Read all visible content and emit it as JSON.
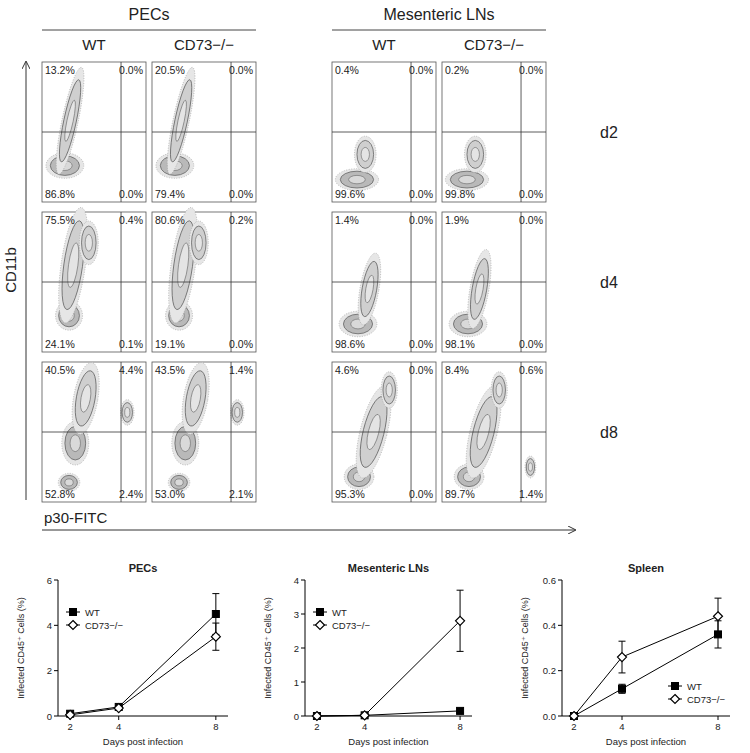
{
  "flow_panel": {
    "y_label": "CD11b",
    "x_label": "p30-FITC",
    "groups": [
      {
        "label": "PECs",
        "columns": [
          "WT",
          "CD73−/−"
        ]
      },
      {
        "label": "Mesenteric LNs",
        "columns": [
          "WT",
          "CD73−/−"
        ]
      }
    ],
    "rows": [
      {
        "label": "d2",
        "plots": [
          [
            "13.2%",
            "0.0%",
            "86.8%",
            "0.0%"
          ],
          [
            "20.5%",
            "0.0%",
            "79.4%",
            "0.0%"
          ],
          [
            "0.4%",
            "0.0%",
            "99.6%",
            "0.0%"
          ],
          [
            "0.2%",
            "0.0%",
            "99.8%",
            "0.0%"
          ]
        ]
      },
      {
        "label": "d4",
        "plots": [
          [
            "75.5%",
            "0.4%",
            "24.1%",
            "0.1%"
          ],
          [
            "80.6%",
            "0.2%",
            "19.1%",
            "0.0%"
          ],
          [
            "1.4%",
            "0.0%",
            "98.6%",
            "0.0%"
          ],
          [
            "1.9%",
            "0.0%",
            "98.1%",
            "0.0%"
          ]
        ]
      },
      {
        "label": "d8",
        "plots": [
          [
            "40.5%",
            "4.4%",
            "52.8%",
            "2.4%"
          ],
          [
            "43.5%",
            "1.4%",
            "53.0%",
            "2.1%"
          ],
          [
            "4.6%",
            "0.0%",
            "95.3%",
            "0.0%"
          ],
          [
            "8.4%",
            "0.6%",
            "89.7%",
            "1.4%"
          ]
        ]
      }
    ]
  },
  "chart_data": [
    {
      "type": "line",
      "title": "PECs",
      "x_label": "Days post infection",
      "y_label": "Infected CD45⁺ Cells (%)",
      "x": [
        2,
        4,
        8
      ],
      "xlim": [
        1.5,
        8.5
      ],
      "xticks": [
        2,
        4,
        8
      ],
      "ylim": [
        0,
        6
      ],
      "yticks": [
        0,
        2,
        4,
        6
      ],
      "legend": "upper left",
      "series": [
        {
          "name": "WT",
          "color": "#000000",
          "marker": "square",
          "values": [
            0.1,
            0.4,
            4.5
          ],
          "error": [
            0.05,
            0.05,
            0.9
          ]
        },
        {
          "name": "CD73−/−",
          "color": "#000000",
          "marker": "diamond",
          "values": [
            0.05,
            0.35,
            3.5
          ],
          "error": [
            0.05,
            0.1,
            0.6
          ]
        }
      ]
    },
    {
      "type": "line",
      "title": "Mesenteric LNs",
      "x_label": "Days post infection",
      "y_label": "Infected CD45⁺ Cells (%)",
      "x": [
        2,
        4,
        8
      ],
      "xlim": [
        1.5,
        8.5
      ],
      "xticks": [
        2,
        4,
        8
      ],
      "ylim": [
        0,
        4
      ],
      "yticks": [
        0,
        1,
        2,
        3,
        4
      ],
      "legend": "upper left",
      "series": [
        {
          "name": "WT",
          "color": "#000000",
          "marker": "square",
          "values": [
            0,
            0.02,
            0.15
          ],
          "error": [
            0,
            0.01,
            0.05
          ]
        },
        {
          "name": "CD73−/−",
          "color": "#000000",
          "marker": "diamond",
          "values": [
            0,
            0.02,
            2.8
          ],
          "error": [
            0,
            0.01,
            0.9
          ]
        }
      ]
    },
    {
      "type": "line",
      "title": "Spleen",
      "x_label": "Days post infection",
      "y_label": "Infected CD45⁺ Cells (%)",
      "x": [
        2,
        4,
        8
      ],
      "xlim": [
        1.5,
        8.5
      ],
      "xticks": [
        2,
        4,
        8
      ],
      "ylim": [
        0,
        0.6
      ],
      "yticks": [
        {
          "value": 0,
          "label": "0.0"
        },
        {
          "value": 0.2,
          "label": "0.2"
        },
        {
          "value": 0.4,
          "label": "0.4"
        },
        {
          "value": 0.6,
          "label": "0.6"
        }
      ],
      "legend": "lower right",
      "series": [
        {
          "name": "WT",
          "color": "#000000",
          "marker": "square",
          "values": [
            0,
            0.12,
            0.36
          ],
          "error": [
            0,
            0.02,
            0.06
          ]
        },
        {
          "name": "CD73−/−",
          "color": "#000000",
          "marker": "diamond",
          "values": [
            0,
            0.26,
            0.44
          ],
          "error": [
            0,
            0.07,
            0.08
          ]
        }
      ]
    }
  ]
}
